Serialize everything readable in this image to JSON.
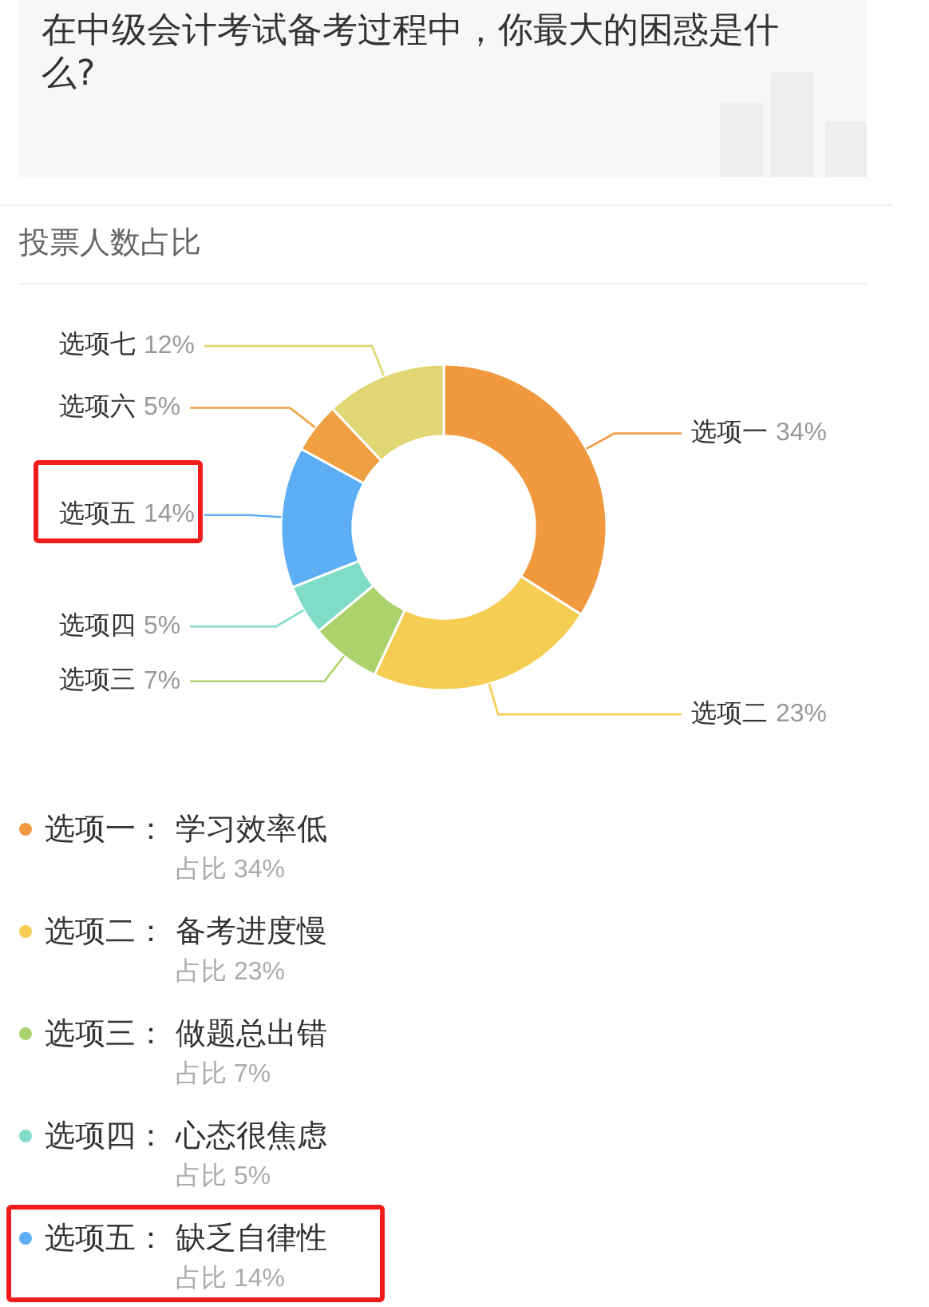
{
  "chart_data": {
    "type": "donut",
    "title": "在中级会计考试备考过程中，你最大的困惑是什么?",
    "subtitle": "投票人数占比",
    "categories": [
      "选项一",
      "选项二",
      "选项三",
      "选项四",
      "选项五",
      "选项六",
      "选项七"
    ],
    "values": [
      34,
      23,
      7,
      5,
      14,
      5,
      12
    ],
    "colors": [
      "#f0993f",
      "#f5cd52",
      "#acd26e",
      "#80dcc9",
      "#5eaef5",
      "#f0a040",
      "#e0d673"
    ],
    "value_labels": [
      "34%",
      "23%",
      "7%",
      "5%",
      "14%",
      "5%",
      "12%"
    ],
    "annotations": [
      "选项一： 学习效率低",
      "占比 34%",
      "选项二： 备考进度慢",
      "占比 23%",
      "选项三： 做题总出错",
      "占比 7%",
      "选项四： 心态很焦虑",
      "占比 5%",
      "选项五： 缺乏自律性",
      "占比 14%"
    ]
  }
}
